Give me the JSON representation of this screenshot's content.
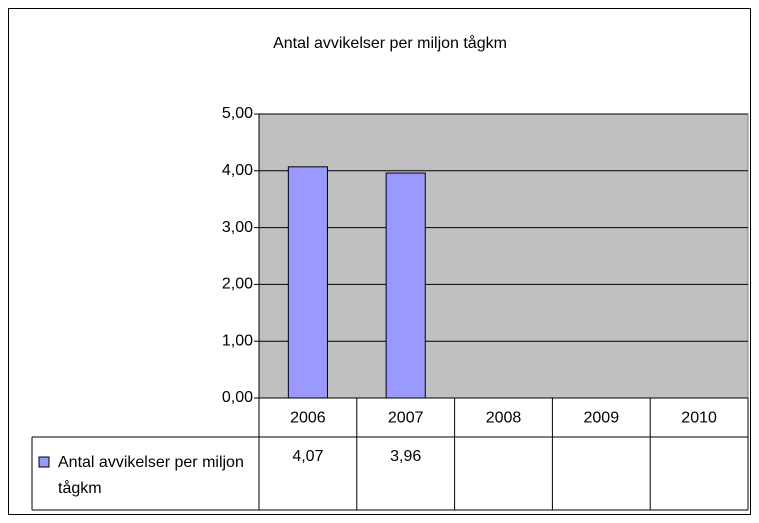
{
  "chart_data": {
    "type": "bar",
    "title": "Antal avvikelser per miljon tågkm",
    "categories": [
      "2006",
      "2007",
      "2008",
      "2009",
      "2010"
    ],
    "series": [
      {
        "name": "Antal avvikelser per miljon tågkm",
        "color": "#9999ff",
        "values": [
          4.07,
          3.96,
          null,
          null,
          null
        ],
        "value_labels": [
          "4,07",
          "3,96",
          null,
          null,
          null
        ]
      }
    ],
    "ylim": [
      0,
      5
    ],
    "yticks": [
      {
        "value": 0,
        "label": "0,00"
      },
      {
        "value": 1,
        "label": "1,00"
      },
      {
        "value": 2,
        "label": "2,00"
      },
      {
        "value": 3,
        "label": "3,00"
      },
      {
        "value": 4,
        "label": "4,00"
      },
      {
        "value": 5,
        "label": "5,00"
      }
    ],
    "grid": true
  }
}
